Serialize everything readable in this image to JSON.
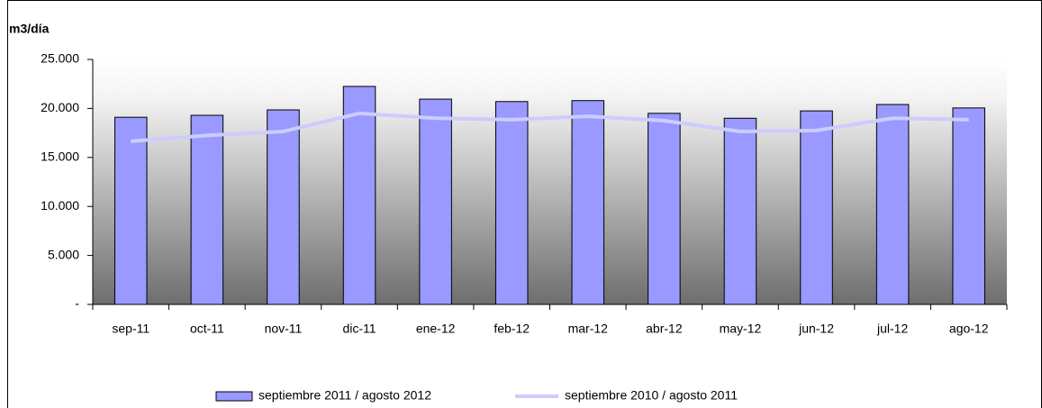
{
  "chart_data": {
    "type": "bar",
    "y_label": "m3/día",
    "categories": [
      "sep-11",
      "oct-11",
      "nov-11",
      "dic-11",
      "ene-12",
      "feb-12",
      "mar-12",
      "abr-12",
      "may-12",
      "jun-12",
      "jul-12",
      "ago-12"
    ],
    "series": [
      {
        "name": "septiembre 2011 / agosto 2012",
        "type": "bar",
        "color": "#9999ff",
        "values": [
          19100,
          19300,
          19850,
          22250,
          20950,
          20700,
          20800,
          19500,
          19000,
          19750,
          20400,
          20050
        ]
      },
      {
        "name": "septiembre 2010 / agosto 2011",
        "type": "line",
        "color": "#ccccff",
        "values": [
          16650,
          17250,
          17650,
          19500,
          19000,
          18850,
          19200,
          18750,
          17650,
          17750,
          19000,
          18850
        ]
      }
    ],
    "ylim": [
      0,
      25000
    ],
    "yticks": [
      {
        "value": 0,
        "label": "-"
      },
      {
        "value": 5000,
        "label": "5.000"
      },
      {
        "value": 10000,
        "label": "10.000"
      },
      {
        "value": 15000,
        "label": "15.000"
      },
      {
        "value": 20000,
        "label": "20.000"
      },
      {
        "value": 25000,
        "label": "25.000"
      }
    ],
    "legend": "bottom"
  }
}
